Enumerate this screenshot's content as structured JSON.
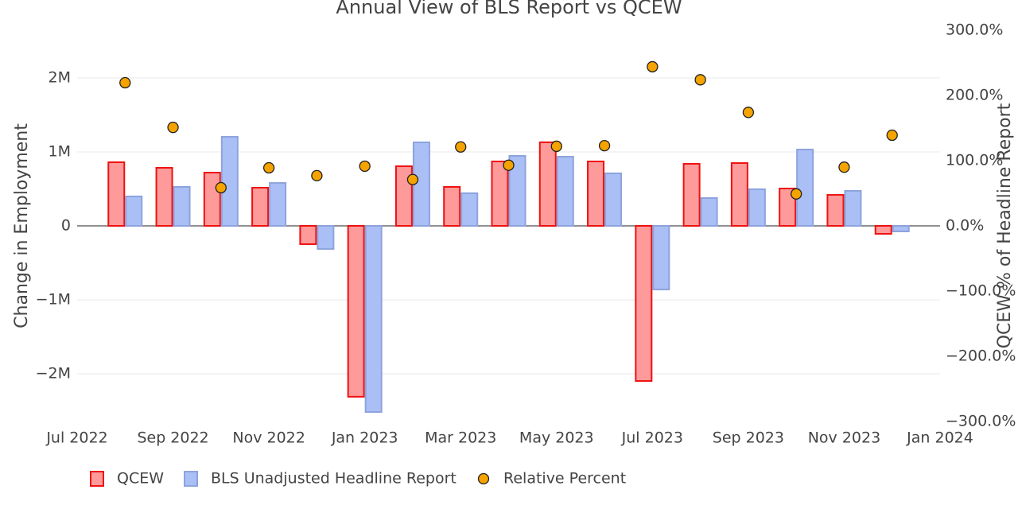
{
  "chart_data": {
    "type": "bar",
    "title": "Annual View of BLS Report vs QCEW",
    "y_label": "Change in Employment",
    "y2_label": "QCEW % of Headline Report",
    "x": [
      "2022-08",
      "2022-09",
      "2022-10",
      "2022-11",
      "2022-12",
      "2023-01",
      "2023-02",
      "2023-03",
      "2023-04",
      "2023-05",
      "2023-06",
      "2023-07",
      "2023-08",
      "2023-09",
      "2023-10",
      "2023-11",
      "2023-12"
    ],
    "xlim": [
      "2022-07",
      "2024-01"
    ],
    "xticks": [
      {
        "value": "2022-07",
        "label": "Jul 2022"
      },
      {
        "value": "2022-09",
        "label": "Sep 2022"
      },
      {
        "value": "2022-11",
        "label": "Nov 2022"
      },
      {
        "value": "2023-01",
        "label": "Jan 2023"
      },
      {
        "value": "2023-03",
        "label": "Mar 2023"
      },
      {
        "value": "2023-05",
        "label": "May 2023"
      },
      {
        "value": "2023-07",
        "label": "Jul 2023"
      },
      {
        "value": "2023-09",
        "label": "Sep 2023"
      },
      {
        "value": "2023-11",
        "label": "Nov 2023"
      },
      {
        "value": "2024-01",
        "label": "Jan 2024"
      }
    ],
    "ylim": [
      -2645000,
      2645000
    ],
    "yticks": [
      {
        "value": -2000000,
        "label": "−2M"
      },
      {
        "value": -1000000,
        "label": "−1M"
      },
      0,
      {
        "value": 1000000,
        "label": "1M"
      },
      {
        "value": 2000000,
        "label": "2M"
      }
    ],
    "y2lim": [
      -300,
      300
    ],
    "y2ticks": [
      {
        "value": -300,
        "label": "−300.0%"
      },
      {
        "value": -200,
        "label": "−200.0%"
      },
      {
        "value": -100,
        "label": "−100.0%"
      },
      {
        "value": 0,
        "label": "0.0%"
      },
      {
        "value": 100,
        "label": "100.0%"
      },
      {
        "value": 200,
        "label": "200.0%"
      },
      {
        "value": 300,
        "label": "300.0%"
      }
    ],
    "grid": true,
    "legend": "bottom",
    "series": [
      {
        "name": "QCEW",
        "type": "bar",
        "color": "#ff9a9a",
        "edge_color": "#ee1111",
        "values": [
          860000,
          785000,
          720000,
          516000,
          -247000,
          -2310000,
          806000,
          527000,
          871000,
          1130000,
          871000,
          -2097000,
          839000,
          849000,
          505000,
          419000,
          -108000
        ]
      },
      {
        "name": "BLS Unadjusted Headline Report",
        "type": "bar",
        "color": "#aabff5",
        "edge_color": "#8ea3dd",
        "values": [
          398000,
          527000,
          1204000,
          580000,
          -312000,
          -2516000,
          1129000,
          441000,
          946000,
          935000,
          710000,
          -860000,
          376000,
          495000,
          1032000,
          473000,
          -75000
        ]
      },
      {
        "name": "Relative Percent",
        "type": "scatter",
        "axis": "y2",
        "color": "#f5a300",
        "edge_color": "#222222",
        "values": [
          219.5,
          151,
          58.5,
          89,
          77,
          91.5,
          71,
          121,
          93,
          122,
          123,
          244,
          224,
          174,
          49,
          90,
          139
        ]
      }
    ]
  }
}
